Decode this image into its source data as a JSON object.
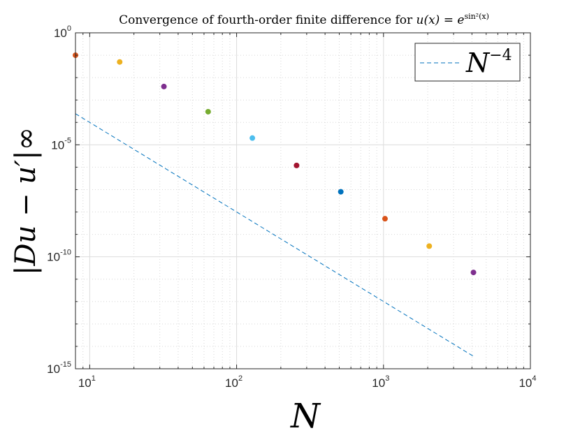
{
  "chart_data": {
    "type": "scatter",
    "title": "Convergence of fourth-order finite difference for u(x) = e^{sin²(x)}",
    "title_parts": {
      "prefix": "Convergence of fourth-order finite difference for ",
      "formula": "u(x) = e",
      "exponent": "sin²(x)"
    },
    "xlabel": "N",
    "ylabel": "|Du − u′|∞",
    "xscale": "log",
    "yscale": "log",
    "xlim": [
      8,
      10000
    ],
    "ylim": [
      1e-15,
      1
    ],
    "grid": true,
    "minor_grid": true,
    "legend_placement": "top-right",
    "x_ticks": [
      {
        "value": 10,
        "base": "10",
        "exp": "1"
      },
      {
        "value": 100,
        "base": "10",
        "exp": "2"
      },
      {
        "value": 1000,
        "base": "10",
        "exp": "3"
      },
      {
        "value": 10000,
        "base": "10",
        "exp": "4"
      }
    ],
    "y_ticks": [
      {
        "value": 1,
        "base": "10",
        "exp": "0"
      },
      {
        "value": 1e-05,
        "base": "10",
        "exp": "-5"
      },
      {
        "value": 1e-10,
        "base": "10",
        "exp": "-10"
      },
      {
        "value": 1e-15,
        "base": "10",
        "exp": "-15"
      }
    ],
    "points": [
      {
        "x": 8,
        "y": 0.1,
        "color": "#D95319"
      },
      {
        "x": 16,
        "y": 0.05,
        "color": "#EDB120"
      },
      {
        "x": 32,
        "y": 0.004,
        "color": "#7E2F8E"
      },
      {
        "x": 64,
        "y": 0.0003,
        "color": "#77AC30"
      },
      {
        "x": 128,
        "y": 2e-05,
        "color": "#4DBEEE"
      },
      {
        "x": 256,
        "y": 1.2e-06,
        "color": "#A2142F"
      },
      {
        "x": 512,
        "y": 8e-08,
        "color": "#0072BD"
      },
      {
        "x": 1024,
        "y": 5e-09,
        "color": "#D95319"
      },
      {
        "x": 2048,
        "y": 3e-10,
        "color": "#EDB120"
      },
      {
        "x": 4096,
        "y": 2e-11,
        "color": "#7E2F8E"
      }
    ],
    "reference_line": {
      "name": "N^-4",
      "name_base": "N",
      "name_exp": "−4",
      "style": "dashed",
      "color": "#0072BD",
      "x": [
        8,
        4096
      ],
      "y": [
        0.000244,
        3.6e-15
      ]
    }
  }
}
